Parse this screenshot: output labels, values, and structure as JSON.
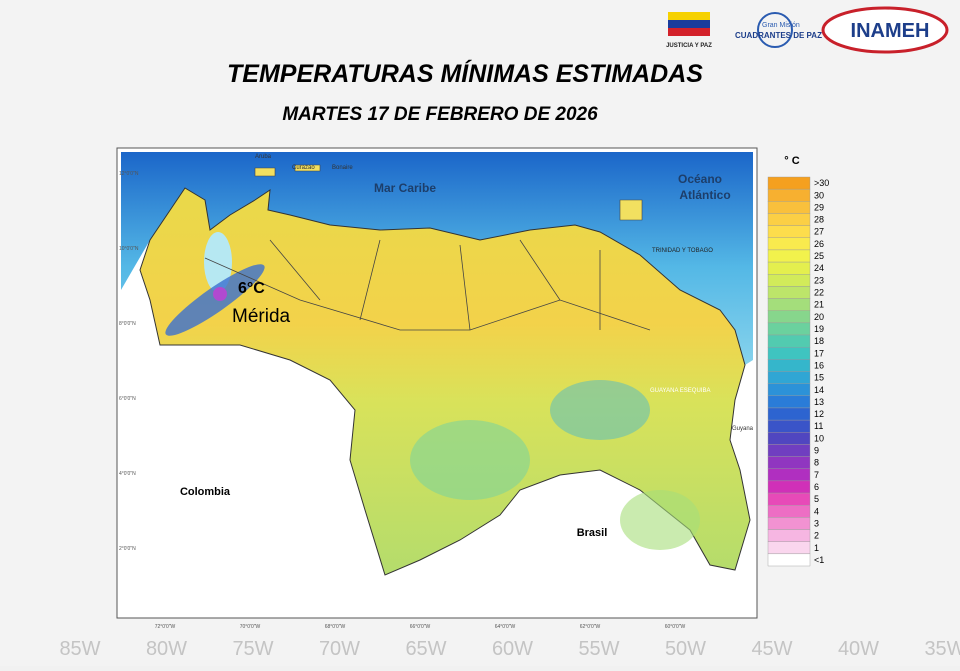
{
  "header": {
    "title": "TEMPERATURAS MÍNIMAS ESTIMADAS",
    "subtitle": "MARTES 17 DE FEBRERO DE 2026"
  },
  "logos": {
    "justicia": "JUSTICIA Y PAZ",
    "gran_mision": "Gran Misión",
    "cuadrantes": "CUADRANTES DE PAZ",
    "inameh": "INAMEH"
  },
  "map": {
    "labels": [
      "Mar Caribe",
      "Océano",
      "Atlántico",
      "Colombia",
      "Brasil",
      "6°C",
      "Mérida",
      "GUAYANA ESEQUIBA",
      "TRINIDAD Y TOBAGO",
      "Aruba",
      "Curazao",
      "Bonaire",
      "Guyana"
    ],
    "lat_labels": [
      "12°0'0\"N",
      "10°0'0\"N",
      "8°0'0\"N",
      "6°0'0\"N",
      "4°0'0\"N",
      "2°0'0\"N"
    ],
    "lon_labels": [
      "72°0'0\"W",
      "70°0'0\"W",
      "68°0'0\"W",
      "66°0'0\"W",
      "64°0'0\"W",
      "62°0'0\"W",
      "60°0'0\"W"
    ]
  },
  "background": {
    "lon_labels": [
      "85W",
      "80W",
      "75W",
      "70W",
      "65W",
      "60W",
      "55W",
      "50W",
      "45W",
      "40W",
      "35W"
    ]
  },
  "legend": {
    "unit": "° C",
    "items": [
      {
        "label": ">30",
        "color": "#f5a01f"
      },
      {
        "label": "30",
        "color": "#f7b030"
      },
      {
        "label": "29",
        "color": "#f9c03c"
      },
      {
        "label": "28",
        "color": "#fbcf45"
      },
      {
        "label": "27",
        "color": "#fddd4c"
      },
      {
        "label": "26",
        "color": "#f9ea4e"
      },
      {
        "label": "25",
        "color": "#f2f24c"
      },
      {
        "label": "24",
        "color": "#e4ef4e"
      },
      {
        "label": "23",
        "color": "#d2eb5a"
      },
      {
        "label": "22",
        "color": "#bde56a"
      },
      {
        "label": "21",
        "color": "#a4de7b"
      },
      {
        "label": "20",
        "color": "#87d68c"
      },
      {
        "label": "19",
        "color": "#6bd19e"
      },
      {
        "label": "18",
        "color": "#52cbb0"
      },
      {
        "label": "17",
        "color": "#3fc4c0"
      },
      {
        "label": "16",
        "color": "#35b6cb"
      },
      {
        "label": "15",
        "color": "#30a6d4"
      },
      {
        "label": "14",
        "color": "#2c92d8"
      },
      {
        "label": "13",
        "color": "#2a7cd8"
      },
      {
        "label": "12",
        "color": "#2d64d0"
      },
      {
        "label": "11",
        "color": "#3a54c8"
      },
      {
        "label": "10",
        "color": "#5046c0"
      },
      {
        "label": "9",
        "color": "#703ec0"
      },
      {
        "label": "8",
        "color": "#9036c0"
      },
      {
        "label": "7",
        "color": "#b02fc0"
      },
      {
        "label": "6",
        "color": "#d030b8"
      },
      {
        "label": "5",
        "color": "#e74ab8"
      },
      {
        "label": "4",
        "color": "#ed6ec4"
      },
      {
        "label": "3",
        "color": "#f292d2"
      },
      {
        "label": "2",
        "color": "#f6b6e2"
      },
      {
        "label": "1",
        "color": "#fad6ee"
      },
      {
        "label": "<1",
        "color": "#ffffff"
      }
    ]
  }
}
